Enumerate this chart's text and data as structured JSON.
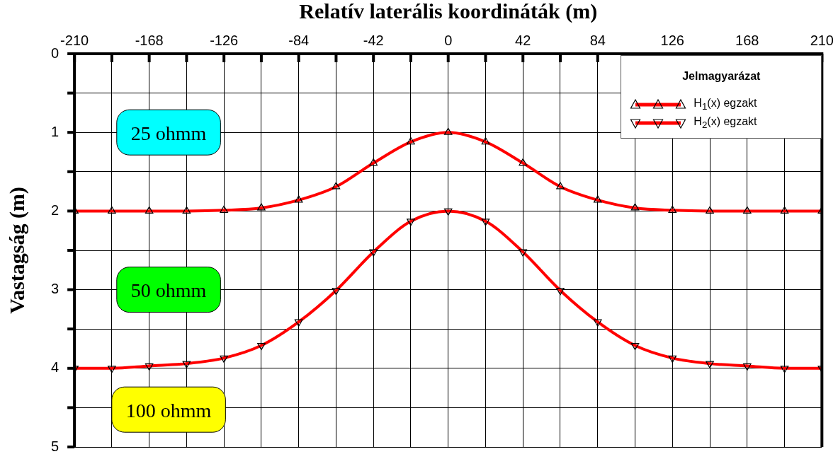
{
  "chart_data": {
    "type": "line",
    "xlabel": "Relatív laterális koordináták (m)",
    "ylabel": "Vastagság (m)",
    "legend_title": "Jelmagyarázat",
    "legend": "top right",
    "grid": true,
    "line_style": "solid",
    "x": [
      -210,
      -189,
      -168,
      -147,
      -126,
      -105,
      -84,
      -63,
      -42,
      -21,
      0,
      21,
      42,
      63,
      84,
      105,
      126,
      147,
      168,
      189,
      210
    ],
    "xlim": [
      -210,
      210
    ],
    "xticks": [
      -210,
      {
        "value": -189,
        "label": null
      },
      -168,
      {
        "value": -147,
        "label": null
      },
      -126,
      {
        "value": -105,
        "label": null
      },
      -84,
      {
        "value": -63,
        "label": null
      },
      -42,
      {
        "value": -21,
        "label": null
      },
      0,
      {
        "value": 21,
        "label": null
      },
      42,
      {
        "value": 63,
        "label": null
      },
      84,
      {
        "value": 105,
        "label": null
      },
      126,
      {
        "value": 147,
        "label": null
      },
      168,
      {
        "value": 189,
        "label": null
      },
      210
    ],
    "ylim": [
      5,
      0
    ],
    "yticks": [
      0,
      {
        "value": 0.5,
        "label": null
      },
      1,
      {
        "value": 1.5,
        "label": null
      },
      2,
      {
        "value": 2.5,
        "label": null
      },
      3,
      {
        "value": 3.5,
        "label": null
      },
      4,
      {
        "value": 4.5,
        "label": null
      },
      5
    ],
    "series": [
      {
        "name": "H$_{1}$(x) egzakt",
        "color": "#ff0000",
        "marker": "triangle",
        "values": [
          2,
          2,
          2,
          2,
          1.99,
          1.96,
          1.86,
          1.69,
          1.39,
          1.12,
          1,
          1.12,
          1.39,
          1.69,
          1.86,
          1.96,
          1.99,
          2,
          2,
          2,
          2
        ]
      },
      {
        "name": "H$_{2}$(x) egzakt",
        "color": "#ff0000",
        "marker": "triangle-down",
        "values": [
          4,
          4,
          3.97,
          3.94,
          3.87,
          3.71,
          3.41,
          3.01,
          2.52,
          2.13,
          2,
          2.13,
          2.52,
          3.01,
          3.41,
          3.71,
          3.87,
          3.94,
          3.97,
          4,
          4
        ]
      }
    ],
    "annotations": [
      "25 ohmm",
      "50 ohmm",
      "100 ohmm"
    ]
  }
}
